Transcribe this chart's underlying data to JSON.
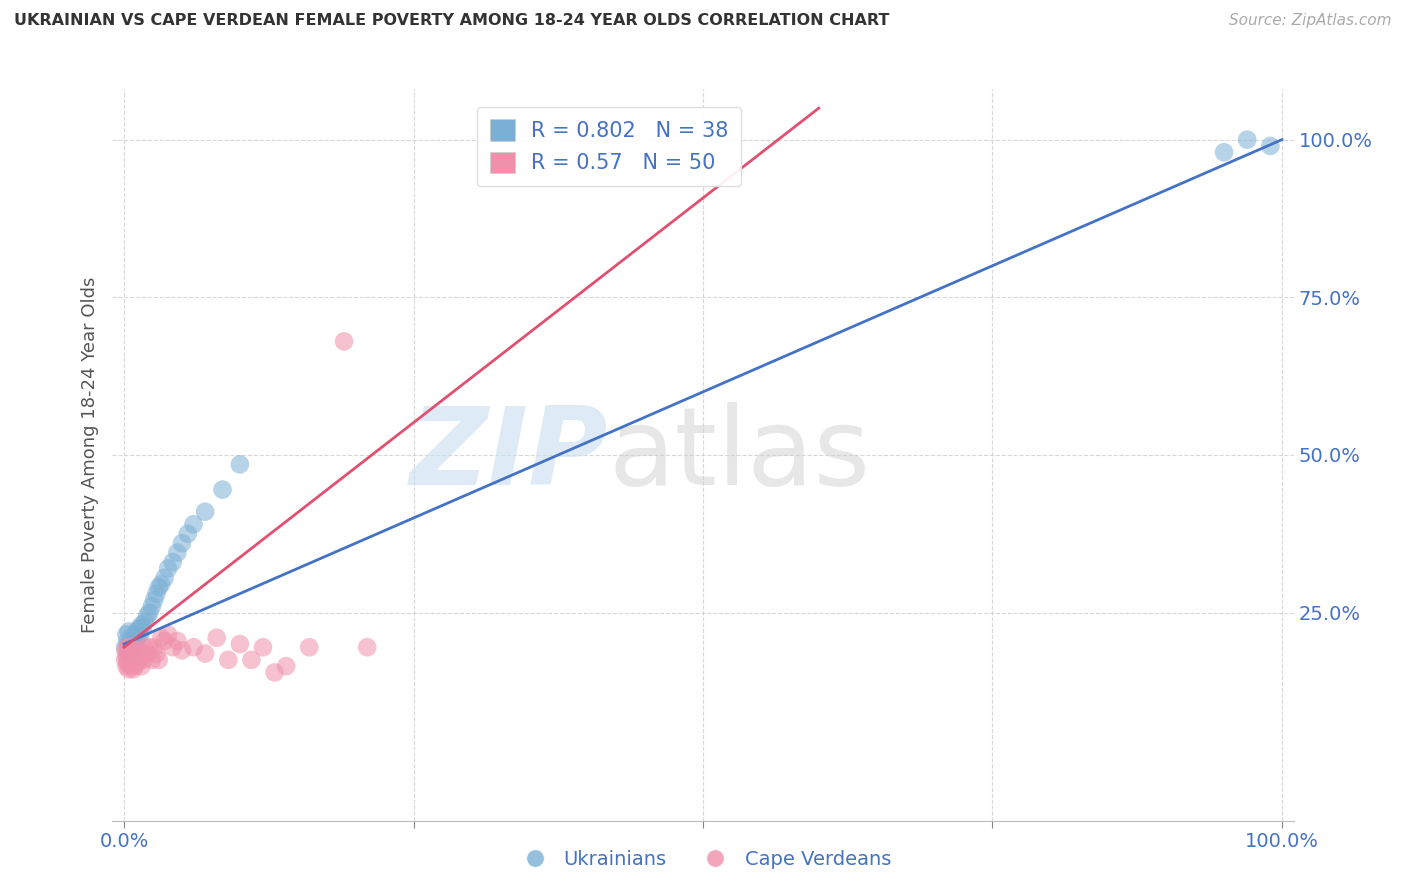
{
  "title": "UKRAINIAN VS CAPE VERDEAN FEMALE POVERTY AMONG 18-24 YEAR OLDS CORRELATION CHART",
  "source": "Source: ZipAtlas.com",
  "ylabel": "Female Poverty Among 18-24 Year Olds",
  "blue_R": 0.802,
  "blue_N": 38,
  "pink_R": 0.57,
  "pink_N": 50,
  "blue_color": "#7bafd4",
  "pink_color": "#f090aa",
  "blue_line_color": "#4472c4",
  "pink_line_color": "#e05070",
  "legend_label_blue": "Ukrainians",
  "legend_label_pink": "Cape Verdeans",
  "tick_color": "#4472c4",
  "grid_color": "#c8c8c8",
  "background_color": "#ffffff",
  "blue_scatter_x": [
    0.001,
    0.002,
    0.003,
    0.004,
    0.005,
    0.005,
    0.006,
    0.007,
    0.008,
    0.009,
    0.01,
    0.011,
    0.012,
    0.013,
    0.014,
    0.015,
    0.016,
    0.018,
    0.02,
    0.022,
    0.024,
    0.026,
    0.028,
    0.03,
    0.032,
    0.035,
    0.038,
    0.042,
    0.046,
    0.05,
    0.055,
    0.06,
    0.07,
    0.085,
    0.1,
    0.95,
    0.97,
    0.99
  ],
  "blue_scatter_y": [
    0.195,
    0.215,
    0.205,
    0.22,
    0.2,
    0.185,
    0.195,
    0.21,
    0.2,
    0.215,
    0.205,
    0.22,
    0.21,
    0.225,
    0.215,
    0.23,
    0.225,
    0.235,
    0.245,
    0.25,
    0.26,
    0.27,
    0.28,
    0.29,
    0.295,
    0.305,
    0.32,
    0.33,
    0.345,
    0.36,
    0.375,
    0.39,
    0.41,
    0.445,
    0.485,
    0.98,
    1.0,
    0.99
  ],
  "pink_scatter_x": [
    0.001,
    0.001,
    0.002,
    0.002,
    0.003,
    0.003,
    0.004,
    0.004,
    0.005,
    0.005,
    0.006,
    0.006,
    0.007,
    0.007,
    0.008,
    0.008,
    0.009,
    0.01,
    0.011,
    0.012,
    0.013,
    0.014,
    0.015,
    0.016,
    0.017,
    0.018,
    0.02,
    0.022,
    0.024,
    0.026,
    0.028,
    0.03,
    0.032,
    0.035,
    0.038,
    0.042,
    0.046,
    0.05,
    0.06,
    0.07,
    0.08,
    0.09,
    0.1,
    0.11,
    0.12,
    0.13,
    0.14,
    0.16,
    0.19,
    0.21
  ],
  "pink_scatter_y": [
    0.19,
    0.175,
    0.18,
    0.165,
    0.195,
    0.17,
    0.185,
    0.16,
    0.175,
    0.195,
    0.165,
    0.18,
    0.17,
    0.185,
    0.16,
    0.175,
    0.165,
    0.18,
    0.17,
    0.19,
    0.175,
    0.185,
    0.165,
    0.185,
    0.175,
    0.195,
    0.185,
    0.195,
    0.175,
    0.195,
    0.185,
    0.175,
    0.21,
    0.205,
    0.215,
    0.195,
    0.205,
    0.19,
    0.195,
    0.185,
    0.21,
    0.175,
    0.2,
    0.175,
    0.195,
    0.155,
    0.165,
    0.195,
    0.68,
    0.195
  ],
  "blue_line_x": [
    0.0,
    1.0
  ],
  "blue_line_y": [
    0.2,
    1.0
  ],
  "pink_line_x": [
    0.0,
    0.6
  ],
  "pink_line_y": [
    0.195,
    1.05
  ],
  "xlim": [
    -0.01,
    1.01
  ],
  "ylim": [
    -0.08,
    1.08
  ]
}
